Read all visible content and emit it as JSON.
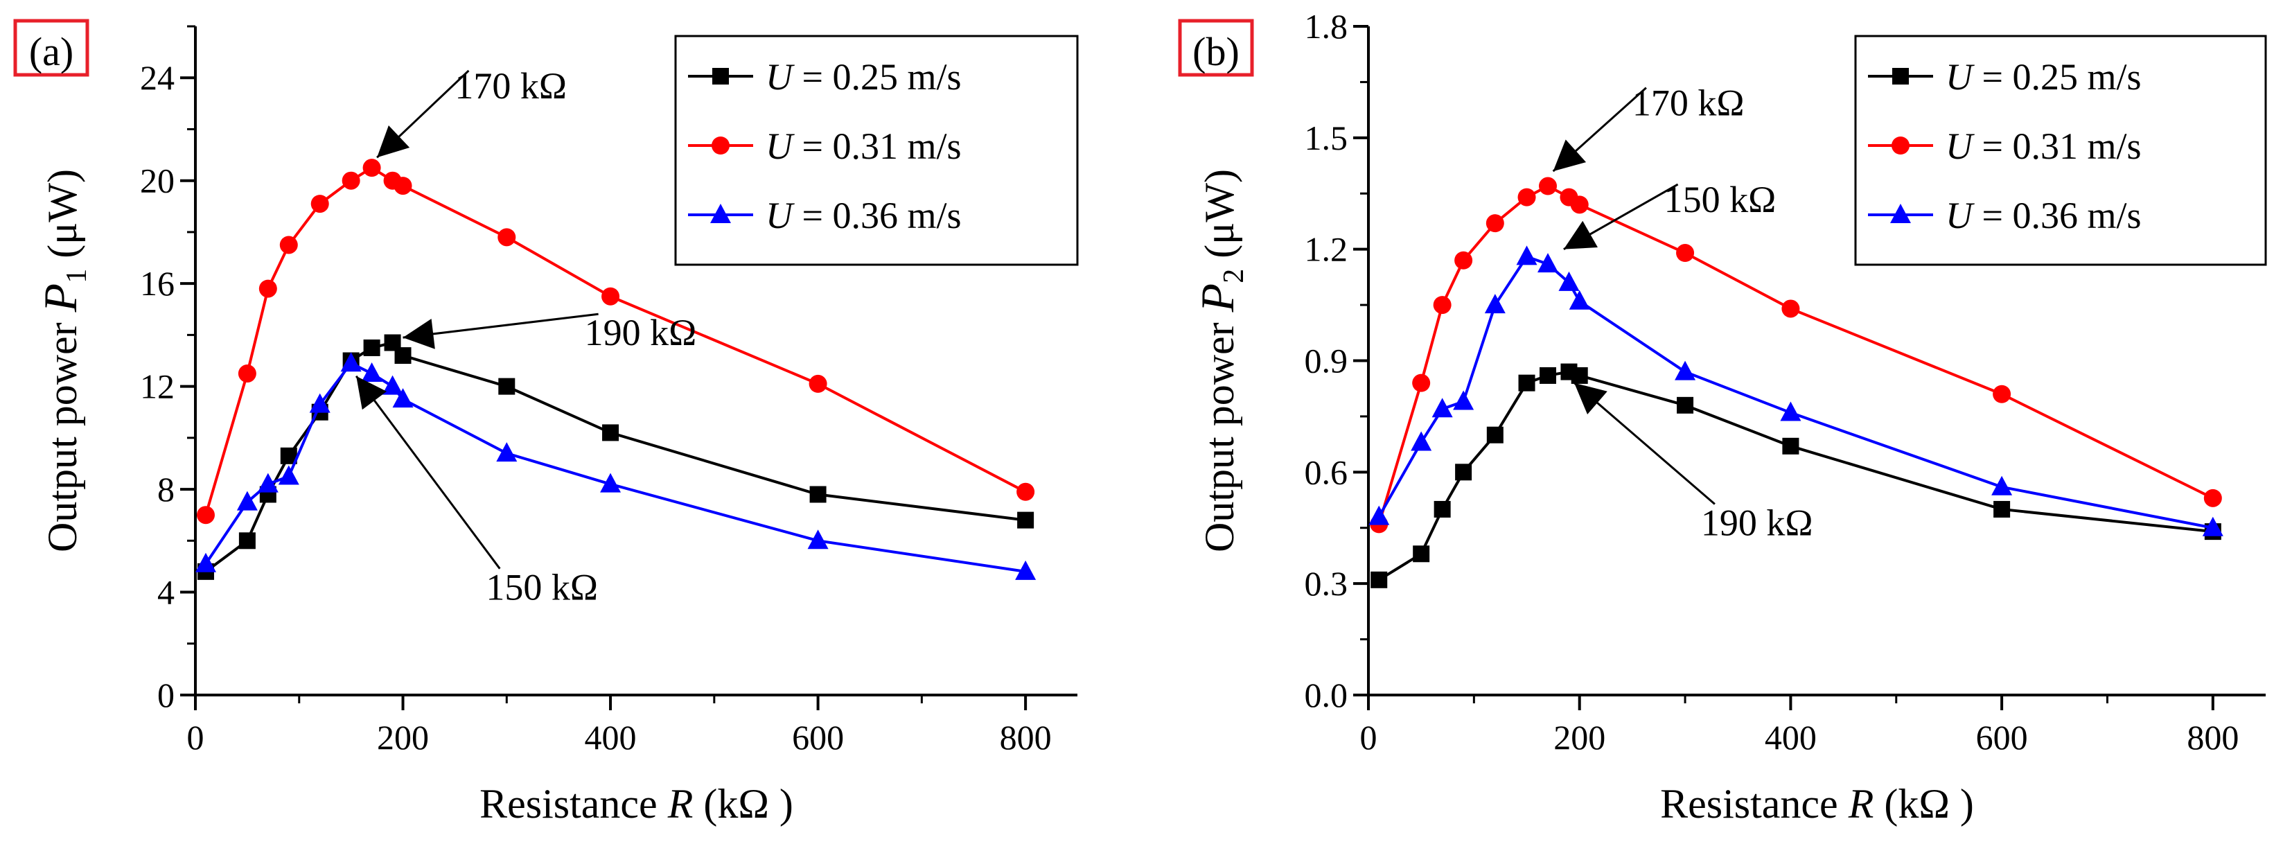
{
  "colors": {
    "black": "#000000",
    "red": "#ff0000",
    "blue": "#0000ff",
    "label_box": "#e8202a"
  },
  "chart_data": [
    {
      "type": "line",
      "panel_label": "(a)",
      "xlabel_prefix": "Resistance ",
      "xlabel_var": "R",
      "xlabel_suffix": " (kΩ )",
      "ylabel_prefix": "Output power ",
      "ylabel_var": "P",
      "ylabel_sub": "1",
      "ylabel_unit": " (μW)",
      "xlim": [
        0,
        850
      ],
      "ylim": [
        0,
        26
      ],
      "xticks": [
        0,
        200,
        400,
        600,
        800
      ],
      "xticks_minor": [
        100,
        300,
        500,
        700
      ],
      "yticks": [
        0,
        4,
        8,
        12,
        16,
        20,
        24
      ],
      "yticks_minor": [
        2,
        6,
        10,
        14,
        18,
        22,
        26
      ],
      "legend": "top-right",
      "series": [
        {
          "name_var": "U",
          "name": " = 0.25 m/s",
          "color": "#000000",
          "marker": "square",
          "x": [
            10,
            50,
            70,
            90,
            120,
            150,
            170,
            190,
            200,
            300,
            400,
            600,
            800
          ],
          "y": [
            4.8,
            6.0,
            7.8,
            9.3,
            11.0,
            13.0,
            13.5,
            13.7,
            13.2,
            12.0,
            10.2,
            7.8,
            6.8
          ]
        },
        {
          "name_var": "U",
          "name": " = 0.31 m/s",
          "color": "#ff0000",
          "marker": "circle",
          "x": [
            10,
            50,
            70,
            90,
            120,
            150,
            170,
            190,
            200,
            300,
            400,
            600,
            800
          ],
          "y": [
            7.0,
            12.5,
            15.8,
            17.5,
            19.1,
            20.0,
            20.5,
            20.0,
            19.8,
            17.8,
            15.5,
            12.1,
            7.9
          ]
        },
        {
          "name_var": "U",
          "name": " = 0.36 m/s",
          "color": "#0000ff",
          "marker": "triangle",
          "x": [
            10,
            50,
            70,
            90,
            120,
            150,
            170,
            190,
            200,
            300,
            400,
            600,
            800
          ],
          "y": [
            5.1,
            7.5,
            8.2,
            8.5,
            11.3,
            12.9,
            12.5,
            12.0,
            11.5,
            9.4,
            8.2,
            6.0,
            4.8
          ]
        }
      ],
      "annotations": [
        {
          "text": "170 kΩ",
          "tx": 250,
          "ty": 23.2,
          "ax": 175,
          "ay": 20.9
        },
        {
          "text": "190 kΩ",
          "tx": 375,
          "ty": 13.6,
          "ax": 200,
          "ay": 13.9
        },
        {
          "text": "150 kΩ",
          "tx": 280,
          "ty": 3.7,
          "ax": 155,
          "ay": 12.4
        }
      ]
    },
    {
      "type": "line",
      "panel_label": "(b)",
      "xlabel_prefix": "Resistance ",
      "xlabel_var": "R",
      "xlabel_suffix": " (kΩ )",
      "ylabel_prefix": "Output power ",
      "ylabel_var": "P",
      "ylabel_sub": "2",
      "ylabel_unit": " (μW)",
      "xlim": [
        0,
        850
      ],
      "ylim": [
        0,
        1.8
      ],
      "xticks": [
        0,
        200,
        400,
        600,
        800
      ],
      "xticks_minor": [
        100,
        300,
        500,
        700
      ],
      "yticks": [
        0.0,
        0.3,
        0.6,
        0.9,
        1.2,
        1.5,
        1.8
      ],
      "yticks_minor": [
        0.15,
        0.45,
        0.75,
        1.05,
        1.35,
        1.65
      ],
      "ytick_labels": [
        "0.0",
        "0.3",
        "0.6",
        "0.9",
        "1.2",
        "1.5",
        "1.8"
      ],
      "legend": "top-right",
      "series": [
        {
          "name_var": "U",
          "name": " = 0.25 m/s",
          "color": "#000000",
          "marker": "square",
          "x": [
            10,
            50,
            70,
            90,
            120,
            150,
            170,
            190,
            200,
            300,
            400,
            600,
            800
          ],
          "y": [
            0.31,
            0.38,
            0.5,
            0.6,
            0.7,
            0.84,
            0.86,
            0.87,
            0.86,
            0.78,
            0.67,
            0.5,
            0.44
          ]
        },
        {
          "name_var": "U",
          "name": " = 0.31 m/s",
          "color": "#ff0000",
          "marker": "circle",
          "x": [
            10,
            50,
            70,
            90,
            120,
            150,
            170,
            190,
            200,
            300,
            400,
            600,
            800
          ],
          "y": [
            0.46,
            0.84,
            1.05,
            1.17,
            1.27,
            1.34,
            1.37,
            1.34,
            1.32,
            1.19,
            1.04,
            0.81,
            0.53
          ]
        },
        {
          "name_var": "U",
          "name": " = 0.36 m/s",
          "color": "#0000ff",
          "marker": "triangle",
          "x": [
            10,
            50,
            70,
            90,
            120,
            150,
            170,
            190,
            200,
            300,
            400,
            600,
            800
          ],
          "y": [
            0.48,
            0.68,
            0.77,
            0.79,
            1.05,
            1.18,
            1.16,
            1.11,
            1.06,
            0.87,
            0.76,
            0.56,
            0.45
          ]
        }
      ],
      "annotations": [
        {
          "text": "170 kΩ",
          "tx": 250,
          "ty": 1.56,
          "ax": 175,
          "ay": 1.41
        },
        {
          "text": "150 kΩ",
          "tx": 280,
          "ty": 1.3,
          "ax": 185,
          "ay": 1.2
        },
        {
          "text": "190 kΩ",
          "tx": 315,
          "ty": 0.43,
          "ax": 195,
          "ay": 0.84
        }
      ]
    }
  ]
}
